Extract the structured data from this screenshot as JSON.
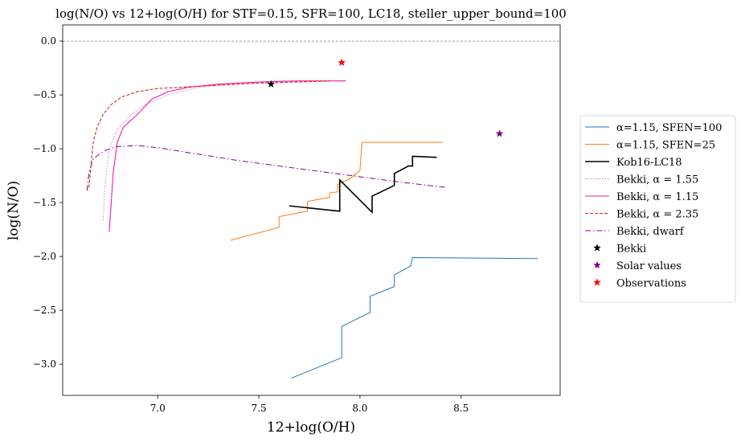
{
  "chart_data": {
    "type": "line",
    "title": "log(N/O) vs 12+log(O/H) for STF=0.15, SFR=100, LC18, steller_upper_bound=100",
    "xlabel": "12+log(O/H)",
    "ylabel": "log(N/O)",
    "xlim": [
      6.53,
      8.99
    ],
    "ylim": [
      -3.29,
      0.15
    ],
    "xticks": [
      7.0,
      7.5,
      8.0,
      8.5
    ],
    "xtick_labels": [
      "7.0",
      "7.5",
      "8.0",
      "8.5"
    ],
    "yticks": [
      0.0,
      -0.5,
      -1.0,
      -1.5,
      -2.0,
      -2.5,
      -3.0
    ],
    "ytick_labels": [
      "0.0",
      "−0.5",
      "−1.0",
      "−1.5",
      "−2.0",
      "−2.5",
      "−3.0"
    ],
    "reference_line": {
      "y": 0.0,
      "style": "dashed",
      "color": "#808080"
    },
    "legend_position": "right outside",
    "series": [
      {
        "name": "α=1.15, SFEN=100",
        "kind": "line",
        "color": "#1f77b4",
        "width": 1,
        "dash": "",
        "x": [
          7.66,
          7.91,
          7.91,
          8.05,
          8.05,
          8.17,
          8.17,
          8.25,
          8.26,
          8.88
        ],
        "y": [
          -3.13,
          -2.94,
          -2.65,
          -2.52,
          -2.37,
          -2.28,
          -2.17,
          -2.09,
          -2.01,
          -2.02
        ]
      },
      {
        "name": "α=1.15, SFEN=25",
        "kind": "line",
        "color": "#ff7f0e",
        "width": 1,
        "dash": "",
        "x": [
          7.36,
          7.6,
          7.6,
          7.74,
          7.74,
          7.85,
          7.85,
          7.89,
          7.89,
          7.95,
          8.0,
          8.01,
          8.41
        ],
        "y": [
          -1.85,
          -1.73,
          -1.63,
          -1.58,
          -1.49,
          -1.45,
          -1.41,
          -1.4,
          -1.33,
          -1.28,
          -1.2,
          -0.94,
          -0.94
        ]
      },
      {
        "name": "Kob16-LC18",
        "kind": "line",
        "color": "#000000",
        "width": 1.6,
        "dash": "",
        "x": [
          7.65,
          7.9,
          7.9,
          8.06,
          8.06,
          8.17,
          8.17,
          8.24,
          8.26,
          8.26,
          8.38
        ],
        "y": [
          -1.53,
          -1.58,
          -1.29,
          -1.59,
          -1.44,
          -1.34,
          -1.23,
          -1.16,
          -1.16,
          -1.07,
          -1.08
        ]
      },
      {
        "name": "Bekki, α = 1.55",
        "kind": "line",
        "color": "#e377c2",
        "width": 1,
        "dash": "1.5,2",
        "x": [
          6.73,
          6.74,
          6.76,
          6.8,
          6.87,
          6.95,
          7.05,
          7.2,
          7.4,
          7.6,
          7.8,
          7.92
        ],
        "y": [
          -1.66,
          -1.3,
          -1.0,
          -0.82,
          -0.68,
          -0.58,
          -0.5,
          -0.43,
          -0.39,
          -0.37,
          -0.37,
          -0.37
        ]
      },
      {
        "name": "Bekki, α = 1.15",
        "kind": "line",
        "color": "#f01fa0",
        "width": 1.1,
        "dash": "",
        "x": [
          6.76,
          6.77,
          6.78,
          6.8,
          6.83,
          6.9,
          6.97,
          7.05,
          7.15,
          7.3,
          7.5,
          7.7,
          7.85,
          7.93
        ],
        "y": [
          -1.77,
          -1.5,
          -1.22,
          -0.94,
          -0.8,
          -0.68,
          -0.54,
          -0.47,
          -0.43,
          -0.4,
          -0.38,
          -0.37,
          -0.37,
          -0.37
        ]
      },
      {
        "name": "Bekki, α = 2.35",
        "kind": "line",
        "color": "#d62728",
        "width": 1.1,
        "dash": "4,2",
        "x": [
          6.66,
          6.67,
          6.68,
          6.7,
          6.73,
          6.77,
          6.82,
          6.9,
          7.0,
          7.1,
          7.3,
          7.5,
          7.7,
          7.85
        ],
        "y": [
          -1.36,
          -1.15,
          -0.95,
          -0.8,
          -0.68,
          -0.59,
          -0.52,
          -0.47,
          -0.44,
          -0.43,
          -0.41,
          -0.39,
          -0.38,
          -0.37
        ]
      },
      {
        "name": "Bekki, dwarf",
        "kind": "line",
        "color": "#8b008b",
        "width": 1,
        "dash": "7,3,1.5,3",
        "x": [
          6.65,
          6.66,
          6.68,
          6.71,
          6.75,
          6.8,
          6.9,
          7.0,
          7.2,
          7.4,
          7.6,
          7.8,
          8.0,
          8.2,
          8.43
        ],
        "y": [
          -1.39,
          -1.22,
          -1.1,
          -1.05,
          -1.01,
          -0.98,
          -0.97,
          -0.99,
          -1.05,
          -1.11,
          -1.16,
          -1.21,
          -1.26,
          -1.31,
          -1.36
        ]
      },
      {
        "name": "Bekki",
        "kind": "marker",
        "color": "#000000",
        "x": [
          7.56
        ],
        "y": [
          -0.4
        ]
      },
      {
        "name": "Solar values",
        "kind": "marker",
        "color": "#800080",
        "x": [
          8.69
        ],
        "y": [
          -0.86
        ]
      },
      {
        "name": "Observations",
        "kind": "marker",
        "color": "#ff0000",
        "x": [
          7.91
        ],
        "y": [
          -0.2
        ]
      }
    ]
  }
}
